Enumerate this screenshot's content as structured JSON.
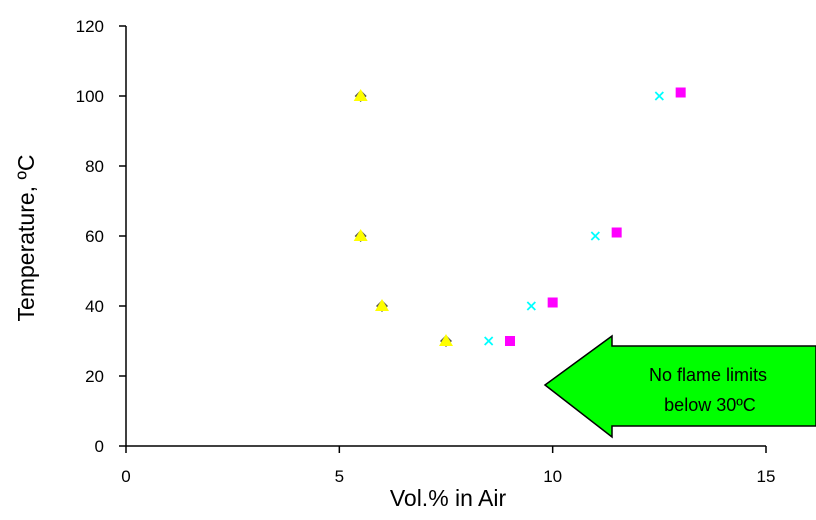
{
  "chart_data": {
    "type": "scatter",
    "xlabel": "Vol.% in Air",
    "ylabel": "Temperature, ºC",
    "xlim": [
      0,
      15
    ],
    "ylim": [
      0,
      120
    ],
    "xticks": [
      0,
      5,
      10,
      15
    ],
    "yticks": [
      0,
      20,
      40,
      60,
      80,
      100,
      120
    ],
    "grid": false,
    "series": [
      {
        "marker": "diamond",
        "color": "#555555",
        "points": [
          [
            5.5,
            100
          ],
          [
            5.5,
            60
          ],
          [
            6.0,
            40
          ],
          [
            7.5,
            30
          ]
        ]
      },
      {
        "marker": "triangle",
        "color": "#FFFF00",
        "points": [
          [
            5.5,
            100
          ],
          [
            5.5,
            60
          ],
          [
            6.0,
            40
          ],
          [
            7.5,
            30
          ]
        ]
      },
      {
        "marker": "x",
        "color": "#00FFFF",
        "points": [
          [
            8.5,
            30
          ],
          [
            9.5,
            40
          ],
          [
            11.0,
            60
          ],
          [
            12.5,
            100
          ]
        ]
      },
      {
        "marker": "square",
        "color": "#FF00FF",
        "points": [
          [
            9.0,
            30
          ],
          [
            10.0,
            41
          ],
          [
            11.5,
            61
          ],
          [
            13.0,
            101
          ]
        ]
      }
    ],
    "annotation": {
      "lines": [
        "No flame limits",
        "below 30ºC"
      ],
      "shape": "left-arrow",
      "color": "#00FF00"
    }
  }
}
